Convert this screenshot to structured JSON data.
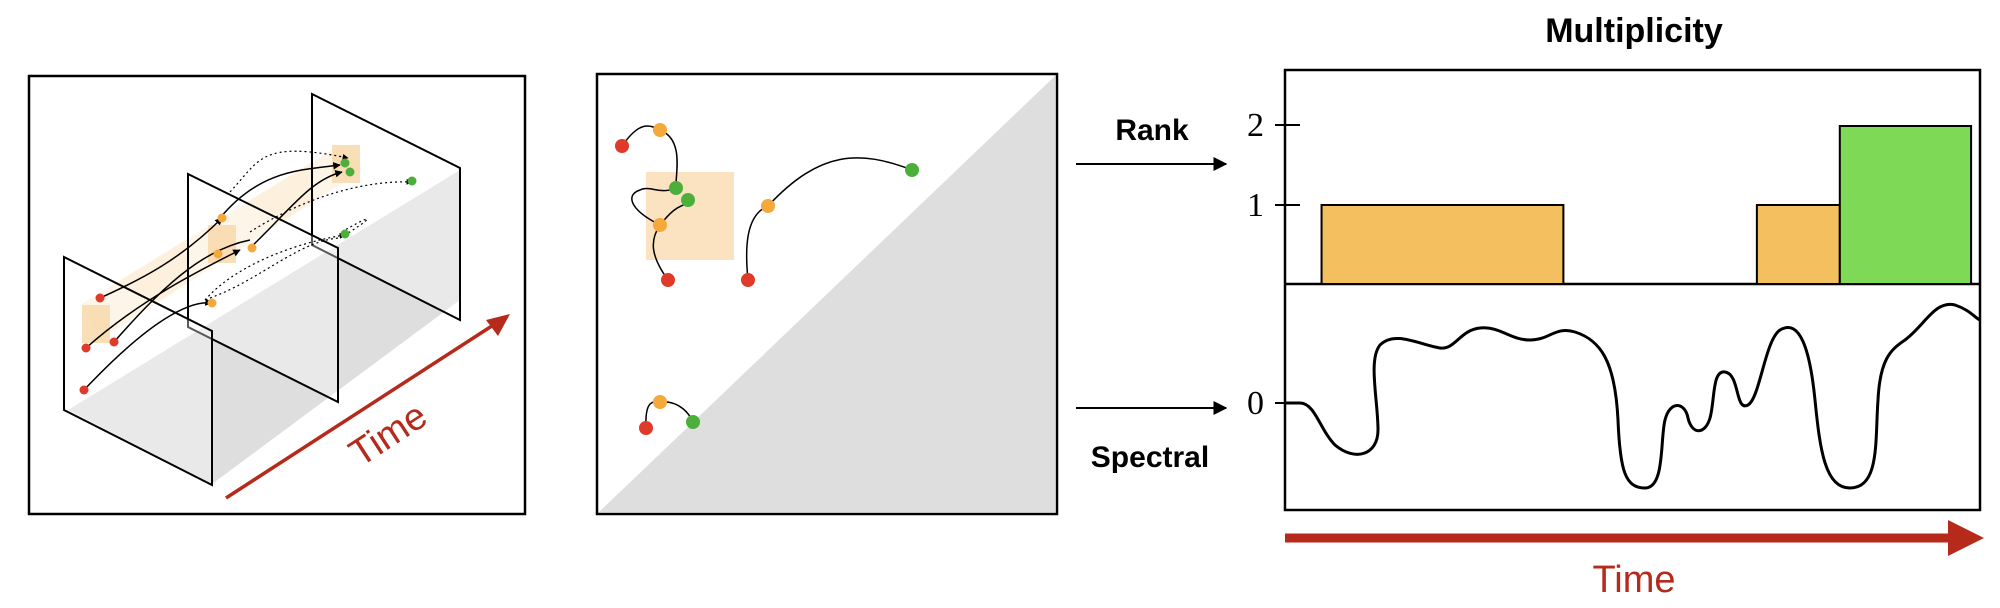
{
  "diagram": {
    "multiplicity_title": "Multiplicity",
    "rank_label": "Rank",
    "spectral_label": "Spectral",
    "time_label_left": "Time",
    "time_label_right": "Time",
    "ytick_2": "2",
    "ytick_1": "1",
    "ytick_0": "0"
  },
  "colors": {
    "orange": "#f4bf5f",
    "green": "#7ed957",
    "red_point": "#e03a2a",
    "orange_point": "#f4a93a",
    "green_point": "#4caf3a",
    "time_arrow": "#b52a1a",
    "highlight": "#fbe3c1",
    "gray_region": "#dedede"
  },
  "chart_data": {
    "type": "bar",
    "title": "Multiplicity",
    "ylim": [
      0,
      2
    ],
    "yticks": [
      "1",
      "2"
    ],
    "bars": [
      {
        "start": 0.05,
        "end": 0.4,
        "value": 1,
        "color": "orange"
      },
      {
        "start": 0.68,
        "end": 0.8,
        "value": 1,
        "color": "orange"
      },
      {
        "start": 0.8,
        "end": 0.99,
        "value": 2,
        "color": "green"
      }
    ]
  }
}
